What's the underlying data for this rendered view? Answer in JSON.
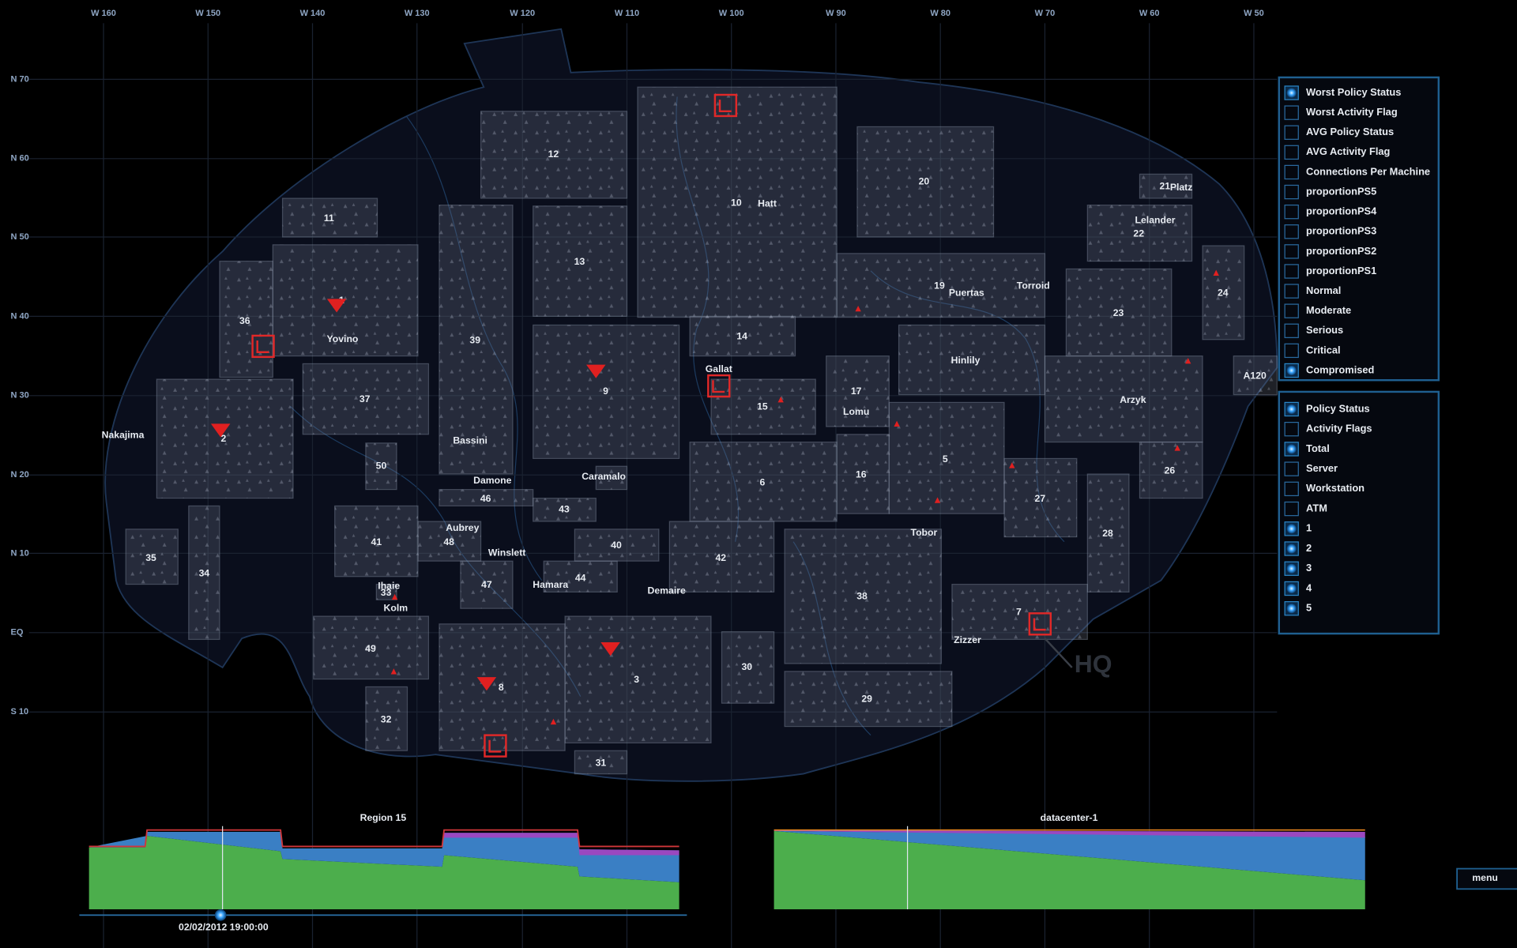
{
  "map": {
    "longitude_labels": [
      "W 160",
      "W 150",
      "W 140",
      "W 130",
      "W 120",
      "W 110",
      "W 100",
      "W 90",
      "W 80",
      "W 70",
      "W 60",
      "W 50"
    ],
    "latitude_labels": [
      "N 70",
      "N 60",
      "N 50",
      "N 40",
      "N 30",
      "N 20",
      "N 10",
      "EQ",
      "S 10"
    ],
    "region_labels": [
      "12",
      "10",
      "20",
      "21",
      "11",
      "22",
      "13",
      "39",
      "36",
      "1",
      "24",
      "19",
      "23",
      "14",
      "37",
      "9",
      "A120",
      "15",
      "17",
      "2",
      "50",
      "26",
      "6",
      "16",
      "5",
      "27",
      "28",
      "46",
      "43",
      "41",
      "48",
      "40",
      "42",
      "35",
      "34",
      "38",
      "47",
      "44",
      "33",
      "7",
      "49",
      "8",
      "3",
      "30",
      "29",
      "32",
      "31"
    ],
    "place_names": [
      "Hatt",
      "Platz",
      "Lelander",
      "Yovino",
      "Bassini",
      "Puertas",
      "Torroid",
      "Hinlily",
      "Arzyk",
      "Gallat",
      "Lomu",
      "Nakajima",
      "Damone",
      "Caramalo",
      "Aubrey",
      "Tobor",
      "Winslett",
      "Hamara",
      "Demaire",
      "Ihaie",
      "Kolm",
      "Zizzer"
    ],
    "hq": "HQ"
  },
  "panel_top": {
    "options": [
      {
        "label": "Worst Policy Status",
        "checked": true
      },
      {
        "label": "Worst Activity Flag",
        "checked": false
      },
      {
        "label": "AVG Policy Status",
        "checked": false
      },
      {
        "label": "AVG Activity Flag",
        "checked": false
      },
      {
        "label": "Connections Per Machine",
        "checked": false
      },
      {
        "label": "proportionPS5",
        "checked": false
      },
      {
        "label": "proportionPS4",
        "checked": false
      },
      {
        "label": "proportionPS3",
        "checked": false
      },
      {
        "label": "proportionPS2",
        "checked": false
      },
      {
        "label": "proportionPS1",
        "checked": false
      },
      {
        "label": "Normal",
        "checked": false,
        "color": "#4fbf4f"
      },
      {
        "label": "Moderate",
        "checked": false,
        "color": "#3f86d0"
      },
      {
        "label": "Serious",
        "checked": false,
        "color": "#b050c8"
      },
      {
        "label": "Critical",
        "checked": false,
        "color": "#f08a20"
      },
      {
        "label": "Compromised",
        "checked": true,
        "color": "#e02828"
      }
    ]
  },
  "panel_bottom": {
    "options": [
      {
        "label": "Policy Status",
        "checked": true
      },
      {
        "label": "Activity Flags",
        "checked": false
      },
      {
        "label": "Total",
        "checked": true
      },
      {
        "label": "Server",
        "checked": false
      },
      {
        "label": "Workstation",
        "checked": false
      },
      {
        "label": "ATM",
        "checked": false
      },
      {
        "label": "1",
        "checked": true
      },
      {
        "label": "2",
        "checked": true
      },
      {
        "label": "3",
        "checked": true
      },
      {
        "label": "4",
        "checked": true
      },
      {
        "label": "5",
        "checked": true
      }
    ]
  },
  "charts": [
    {
      "title": "Region 15"
    },
    {
      "title": "datacenter-1"
    }
  ],
  "timestamp": "02/02/2012 19:00:00",
  "menu": "menu"
}
